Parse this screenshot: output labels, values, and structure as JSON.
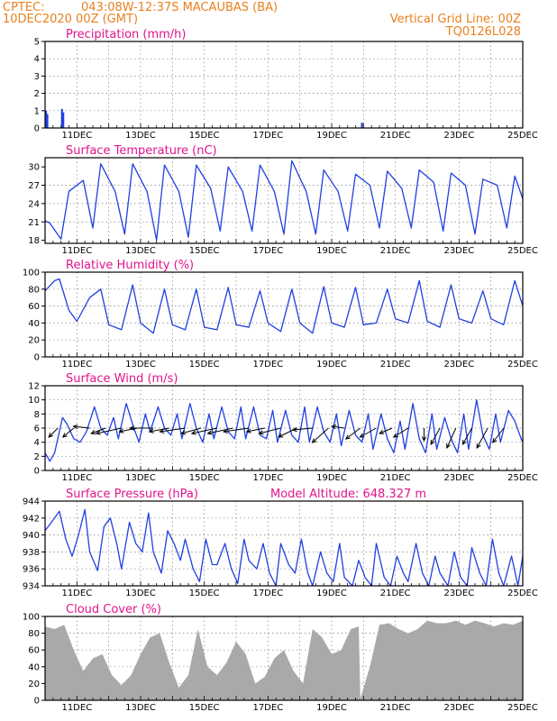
{
  "header": {
    "source": "CPTEC:",
    "location": "043:08W-12:37S   MACAUBAS (BA)",
    "run": "10DEC2020 00Z (GMT)",
    "grid_note": "Vertical Grid Line: 00Z",
    "code": "TQ0126L028"
  },
  "colors": {
    "header": "#e8801e",
    "title": "#e0148c",
    "series": "#2040e0",
    "cloud": "#a9a9a9",
    "wind_arrow": "#000000"
  },
  "x_ticks": [
    "11DEC",
    "13DEC",
    "15DEC",
    "17DEC",
    "19DEC",
    "21DEC",
    "23DEC",
    "25DEC"
  ],
  "chart_data": [
    {
      "type": "bar",
      "title": "Precipitation (mm/h)",
      "x_unit": "days from 10DEC2020 00Z",
      "ylim": [
        0,
        5
      ],
      "yticks": [
        "0",
        "1",
        "2",
        "3",
        "4",
        "5"
      ],
      "grid": true,
      "x": [
        0.0,
        0.04,
        0.5,
        0.54,
        9.92,
        12.05
      ],
      "values": [
        1.0,
        0.8,
        1.1,
        0.9,
        0.3,
        0.05
      ]
    },
    {
      "type": "line",
      "title": "Surface Temperature (nC)",
      "x_unit": "days from 10DEC2020 00Z",
      "ylim": [
        17.5,
        31.5
      ],
      "yticks": [
        "18",
        "21",
        "24",
        "27",
        "30"
      ],
      "grid": true,
      "x": [
        0,
        0.15,
        0.5,
        0.75,
        1.2,
        1.5,
        1.75,
        2.2,
        2.5,
        2.75,
        3.2,
        3.5,
        3.75,
        4.2,
        4.5,
        4.75,
        5.2,
        5.5,
        5.75,
        6.2,
        6.5,
        6.75,
        7.2,
        7.5,
        7.75,
        8.2,
        8.5,
        8.75,
        9.2,
        9.5,
        9.75,
        10.2,
        10.5,
        10.75,
        11.2,
        11.5,
        11.75,
        12.2,
        12.5,
        12.75,
        13.2,
        13.5,
        13.75,
        14.2,
        14.5,
        14.75,
        15.0
      ],
      "values": [
        21.2,
        20.8,
        18.2,
        26.0,
        27.8,
        20.0,
        30.5,
        26.0,
        19.0,
        30.5,
        26.0,
        18.0,
        30.3,
        26.0,
        18.5,
        30.3,
        26.5,
        19.5,
        30.0,
        26.0,
        19.5,
        30.3,
        26.0,
        19.0,
        31.0,
        26.0,
        19.0,
        29.5,
        26.0,
        19.5,
        28.8,
        27.0,
        20.0,
        29.3,
        26.5,
        20.0,
        29.5,
        27.5,
        19.5,
        29.0,
        27.0,
        19.0,
        28.0,
        27.0,
        20.0,
        28.5,
        24.8
      ]
    },
    {
      "type": "line",
      "title": "Relative Humidity (%)",
      "x_unit": "days from 10DEC2020 00Z",
      "ylim": [
        0,
        100
      ],
      "yticks": [
        "0",
        "20",
        "40",
        "60",
        "80",
        "100"
      ],
      "grid": true,
      "x": [
        0,
        0.3,
        0.45,
        0.75,
        1.0,
        1.4,
        1.75,
        2.0,
        2.4,
        2.75,
        3.0,
        3.4,
        3.75,
        4.0,
        4.4,
        4.75,
        5.0,
        5.4,
        5.75,
        6.0,
        6.4,
        6.75,
        7.0,
        7.4,
        7.75,
        8.0,
        8.4,
        8.75,
        9.0,
        9.4,
        9.75,
        10.0,
        10.4,
        10.75,
        11.0,
        11.4,
        11.75,
        12.0,
        12.4,
        12.75,
        13.0,
        13.4,
        13.75,
        14.0,
        14.4,
        14.75,
        15.0
      ],
      "values": [
        78,
        90,
        92,
        55,
        42,
        70,
        80,
        38,
        32,
        85,
        40,
        28,
        80,
        38,
        32,
        80,
        35,
        32,
        82,
        38,
        35,
        78,
        40,
        30,
        80,
        40,
        28,
        83,
        40,
        35,
        82,
        38,
        40,
        80,
        45,
        40,
        90,
        42,
        35,
        85,
        45,
        40,
        78,
        45,
        38,
        90,
        60
      ]
    },
    {
      "type": "line",
      "title": "Surface Wind (m/s)",
      "x_unit": "days from 10DEC2020 00Z",
      "ylim": [
        0,
        12
      ],
      "yticks": [
        "0",
        "2",
        "4",
        "6",
        "8",
        "10",
        "12"
      ],
      "grid": true,
      "x": [
        0,
        0.15,
        0.3,
        0.55,
        0.7,
        0.9,
        1.1,
        1.3,
        1.55,
        1.75,
        1.95,
        2.15,
        2.3,
        2.55,
        2.75,
        2.95,
        3.15,
        3.3,
        3.55,
        3.75,
        3.95,
        4.15,
        4.3,
        4.55,
        4.75,
        4.95,
        5.15,
        5.3,
        5.55,
        5.75,
        5.95,
        6.15,
        6.3,
        6.55,
        6.75,
        6.95,
        7.15,
        7.3,
        7.55,
        7.75,
        7.95,
        8.15,
        8.3,
        8.55,
        8.75,
        8.95,
        9.15,
        9.3,
        9.55,
        9.75,
        9.95,
        10.15,
        10.3,
        10.55,
        10.75,
        10.95,
        11.15,
        11.3,
        11.55,
        11.75,
        11.95,
        12.15,
        12.3,
        12.55,
        12.75,
        12.95,
        13.15,
        13.3,
        13.55,
        13.75,
        13.95,
        14.15,
        14.3,
        14.55,
        14.75,
        14.95,
        15.0
      ],
      "values": [
        2.5,
        1.3,
        2.5,
        7.5,
        6.5,
        4.5,
        4.0,
        5.5,
        9.0,
        6.0,
        5.0,
        7.5,
        4.5,
        9.5,
        6.5,
        4.0,
        8.0,
        5.5,
        9.0,
        6.0,
        5.0,
        8.0,
        4.5,
        9.5,
        6.0,
        4.0,
        8.0,
        4.5,
        9.0,
        5.5,
        4.5,
        9.0,
        4.5,
        9.0,
        5.0,
        4.5,
        8.5,
        4.0,
        8.5,
        5.0,
        4.0,
        9.0,
        4.0,
        9.0,
        5.5,
        4.0,
        8.0,
        3.5,
        8.5,
        5.0,
        4.0,
        8.0,
        3.0,
        8.0,
        4.5,
        2.5,
        7.0,
        3.0,
        9.5,
        4.5,
        2.5,
        8.0,
        3.0,
        7.5,
        4.5,
        2.5,
        8.0,
        3.0,
        10.0,
        5.0,
        3.0,
        8.0,
        4.0,
        8.5,
        7.0,
        4.5,
        4.0
      ],
      "arrows": {
        "x": [
          0.4,
          0.9,
          1.4,
          1.9,
          2.4,
          2.9,
          3.4,
          3.9,
          4.4,
          4.9,
          5.4,
          5.9,
          6.4,
          6.9,
          7.4,
          7.9,
          8.4,
          8.9,
          9.4,
          9.9,
          10.4,
          10.9,
          11.4,
          11.9,
          12.4,
          12.9,
          13.4,
          13.9,
          14.4
        ],
        "u": [
          -2.5,
          -3.0,
          -4.5,
          -4.0,
          -7.0,
          -5.0,
          -6.5,
          -5.5,
          -7.0,
          -5.5,
          -7.0,
          -7.0,
          -7.0,
          -5.0,
          -6.0,
          -5.0,
          -5.5,
          -4.5,
          -3.5,
          -4.0,
          -4.5,
          -3.5,
          -4.0,
          0.0,
          -2.5,
          -2.5,
          -2.5,
          -3.0,
          -3.0
        ],
        "v": [
          -2.5,
          -2.5,
          0.5,
          -1.5,
          -1.5,
          -1.0,
          0.0,
          -1.0,
          -1.0,
          -1.5,
          -1.5,
          -1.5,
          -1.0,
          -1.0,
          -1.5,
          -2.5,
          -0.5,
          -4.0,
          0.5,
          -3.0,
          -2.5,
          -1.5,
          -2.5,
          -3.5,
          -4.5,
          -5.5,
          -4.5,
          -5.5,
          -4.0
        ]
      }
    },
    {
      "type": "line",
      "title": "Surface Pressure (hPa)",
      "x_unit": "days from 10DEC2020 00Z",
      "ylim": [
        934,
        944
      ],
      "yticks": [
        "934",
        "936",
        "938",
        "940",
        "942",
        "944"
      ],
      "grid": true,
      "x": [
        0,
        0.2,
        0.45,
        0.65,
        0.85,
        1.05,
        1.25,
        1.4,
        1.65,
        1.85,
        2.05,
        2.25,
        2.4,
        2.65,
        2.85,
        3.05,
        3.25,
        3.4,
        3.65,
        3.85,
        4.05,
        4.25,
        4.4,
        4.65,
        4.85,
        5.05,
        5.25,
        5.4,
        5.65,
        5.85,
        6.05,
        6.25,
        6.4,
        6.65,
        6.85,
        7.05,
        7.25,
        7.4,
        7.65,
        7.85,
        8.05,
        8.25,
        8.4,
        8.65,
        8.85,
        9.05,
        9.25,
        9.4,
        9.65,
        9.85,
        10.05,
        10.25,
        10.4,
        10.65,
        10.85,
        11.05,
        11.25,
        11.4,
        11.65,
        11.85,
        12.05,
        12.25,
        12.4,
        12.65,
        12.85,
        13.05,
        13.25,
        13.4,
        13.65,
        13.85,
        14.05,
        14.25,
        14.4,
        14.65,
        14.85,
        15.0
      ],
      "values": [
        940.5,
        941.5,
        942.8,
        939.5,
        937.5,
        940.0,
        943.0,
        938.0,
        935.8,
        941.0,
        942.0,
        939.0,
        936.0,
        941.5,
        939.0,
        938.0,
        942.6,
        938.0,
        935.5,
        940.5,
        939.0,
        937.0,
        939.5,
        936.0,
        934.5,
        939.5,
        936.5,
        936.5,
        939.0,
        936.0,
        934.3,
        939.5,
        937.0,
        936.0,
        939.0,
        935.5,
        934.0,
        939.0,
        936.5,
        935.5,
        939.5,
        935.5,
        934.0,
        938.0,
        935.5,
        934.5,
        939.0,
        935.0,
        934.0,
        937.0,
        935.0,
        934.0,
        939.0,
        935.0,
        933.0,
        937.5,
        935.5,
        934.5,
        939.0,
        935.5,
        933.5,
        937.5,
        935.5,
        934.0,
        938.0,
        935.0,
        934.0,
        938.5,
        935.5,
        933.0,
        939.5,
        935.5,
        934.0,
        937.5,
        933.5,
        937.5
      ]
    },
    {
      "type": "area",
      "title": "Cloud Cover (%)",
      "x_unit": "days from 10DEC2020 00Z",
      "ylim": [
        0,
        100
      ],
      "yticks": [
        "0",
        "20",
        "40",
        "60",
        "80",
        "100"
      ],
      "grid": true,
      "x": [
        0,
        0.3,
        0.6,
        0.9,
        1.2,
        1.5,
        1.8,
        2.1,
        2.4,
        2.7,
        3.0,
        3.3,
        3.6,
        3.9,
        4.2,
        4.5,
        4.8,
        5.1,
        5.4,
        5.7,
        6.0,
        6.3,
        6.6,
        6.9,
        7.2,
        7.5,
        7.8,
        8.1,
        8.4,
        8.7,
        9.0,
        9.3,
        9.6,
        9.85,
        9.9,
        10.2,
        10.5,
        10.8,
        11.1,
        11.4,
        11.7,
        12.0,
        12.3,
        12.6,
        12.9,
        13.2,
        13.5,
        13.8,
        14.1,
        14.4,
        14.7,
        15.0
      ],
      "values": [
        88,
        85,
        90,
        60,
        35,
        50,
        55,
        30,
        18,
        30,
        55,
        75,
        80,
        45,
        15,
        30,
        85,
        40,
        30,
        45,
        70,
        55,
        20,
        28,
        50,
        60,
        35,
        20,
        85,
        75,
        55,
        60,
        85,
        88,
        2,
        40,
        90,
        92,
        85,
        80,
        85,
        95,
        92,
        92,
        95,
        90,
        95,
        92,
        88,
        92,
        90,
        95
      ]
    }
  ],
  "panel_extras": {
    "pressure_note": "Model Altitude: 648.327 m"
  }
}
